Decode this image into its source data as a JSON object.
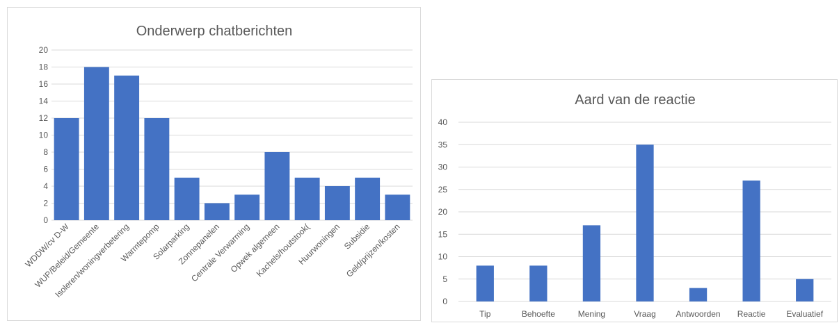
{
  "chart_data": [
    {
      "type": "bar",
      "title": "Onderwerp chatberichten",
      "categories": [
        "WDDW/cv D-W",
        "WUP/Beleid/Gemeente",
        "Isoleren/woningverbetering",
        "Warmtepomp",
        "Solarparking",
        "Zonnepanelen",
        "Centrale Verwarming",
        "Opwek algemeen",
        "Kachels/houtstook(",
        "Huurwoningen",
        "Subsidie",
        "Geld/prijzen/kosten"
      ],
      "values": [
        12,
        18,
        17,
        12,
        5,
        2,
        3,
        8,
        5,
        4,
        5,
        3
      ],
      "ylim": [
        0,
        20
      ],
      "yticks": [
        0,
        2,
        4,
        6,
        8,
        10,
        12,
        14,
        16,
        18,
        20
      ],
      "grid": true,
      "bar_color": "#4472c4"
    },
    {
      "type": "bar",
      "title": "Aard van de reactie",
      "categories": [
        "Tip",
        "Behoefte",
        "Mening",
        "Vraag",
        "Antwoorden",
        "Reactie",
        "Evaluatief"
      ],
      "values": [
        8,
        8,
        17,
        35,
        3,
        27,
        5
      ],
      "ylim": [
        0,
        40
      ],
      "yticks": [
        0,
        5,
        10,
        15,
        20,
        25,
        30,
        35,
        40
      ],
      "grid": true,
      "bar_color": "#4472c4"
    }
  ]
}
